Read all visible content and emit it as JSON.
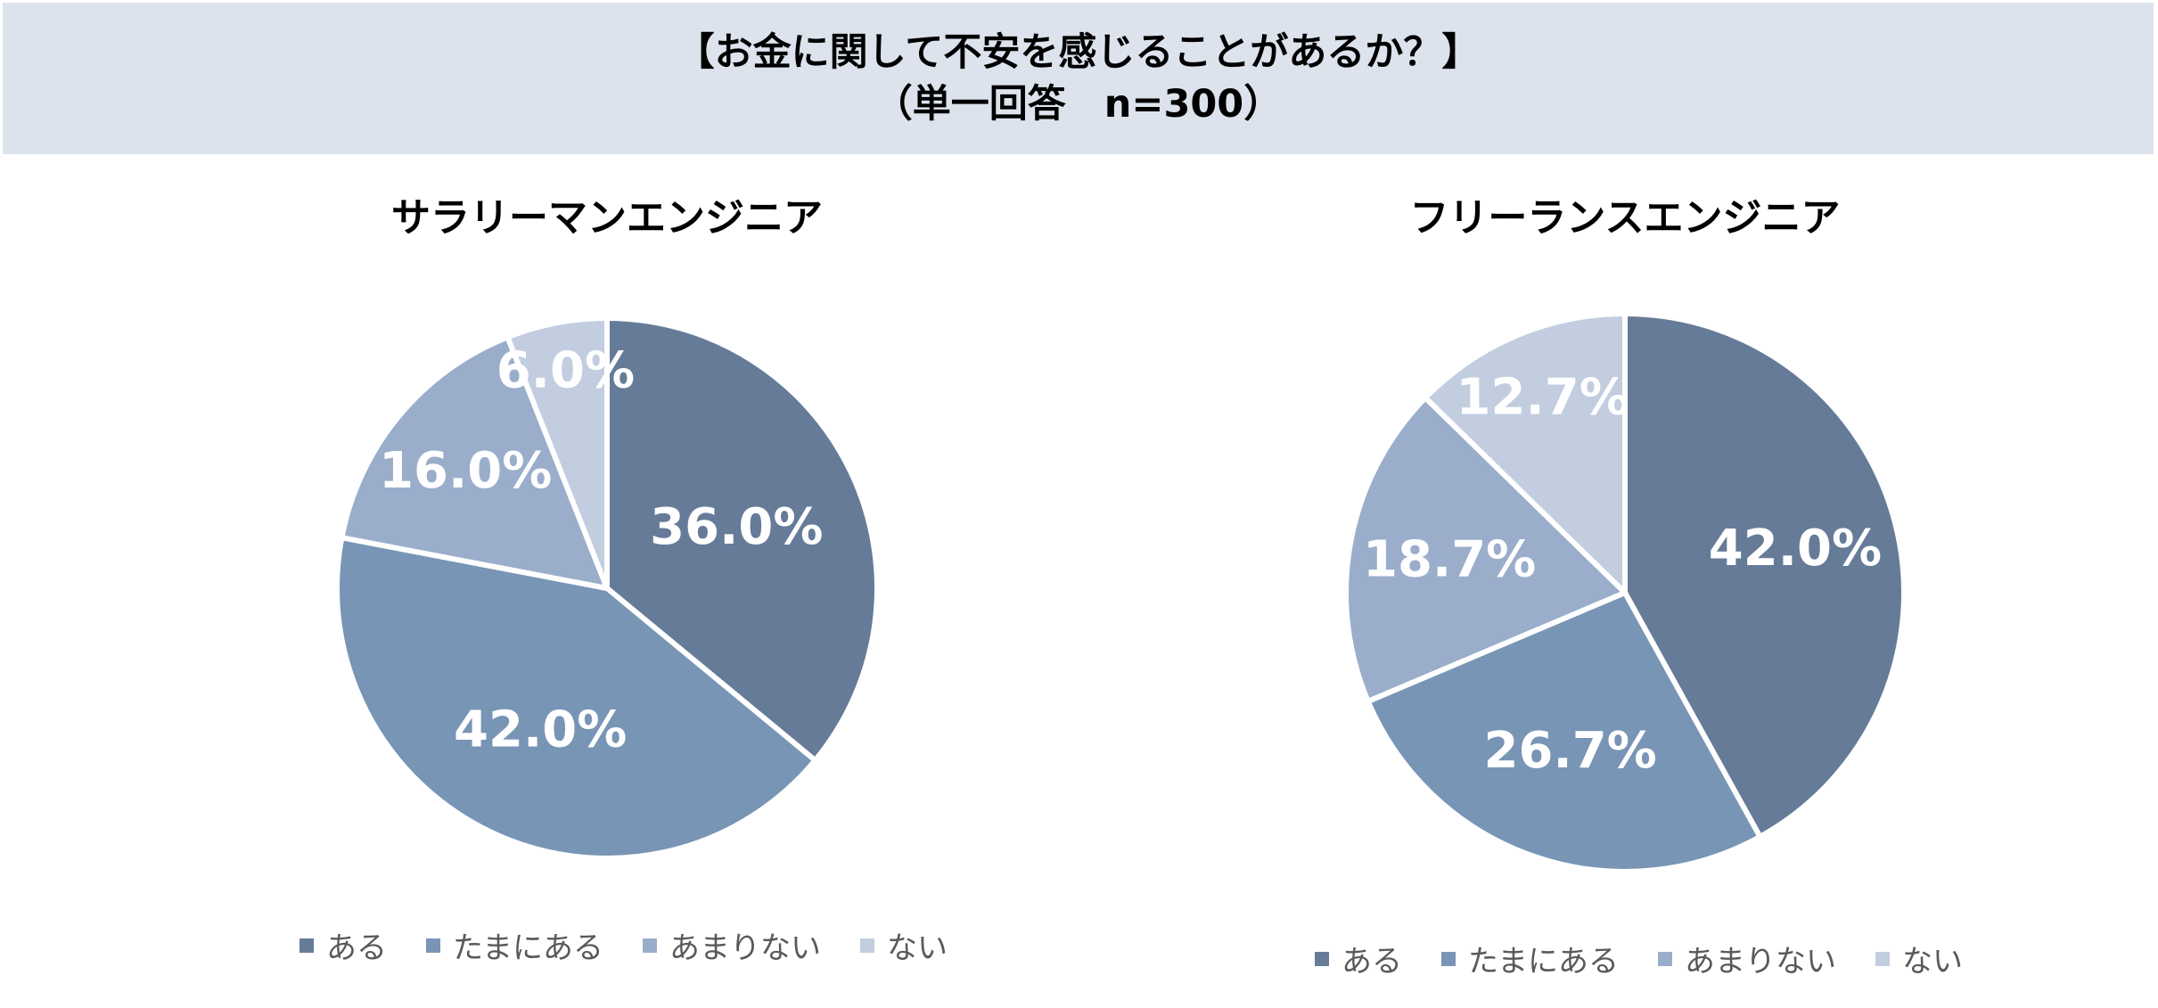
{
  "header": {
    "title_line1": "【お金に関して不安を感じることがあるか？】",
    "title_line2": "（単一回答　n=300）"
  },
  "categories": [
    "ある",
    "たまにある",
    "あまりない",
    "ない"
  ],
  "colors": [
    "#657b98",
    "#7895b5",
    "#9aaecb",
    "#c2cde0"
  ],
  "chart_data": [
    {
      "type": "pie",
      "title": "サラリーマンエンジニア",
      "categories": [
        "ある",
        "たまにある",
        "あまりない",
        "ない"
      ],
      "values": [
        36.0,
        42.0,
        16.0,
        6.0
      ],
      "labels": [
        "36.0%",
        "42.0%",
        "16.0%",
        "6.0%"
      ],
      "legend_position": "bottom"
    },
    {
      "type": "pie",
      "title": "フリーランスエンジニア",
      "categories": [
        "ある",
        "たまにある",
        "あまりない",
        "ない"
      ],
      "values": [
        42.0,
        26.7,
        18.7,
        12.7
      ],
      "labels": [
        "42.0%",
        "26.7%",
        "18.7%",
        "12.7%"
      ],
      "legend_position": "bottom"
    }
  ]
}
